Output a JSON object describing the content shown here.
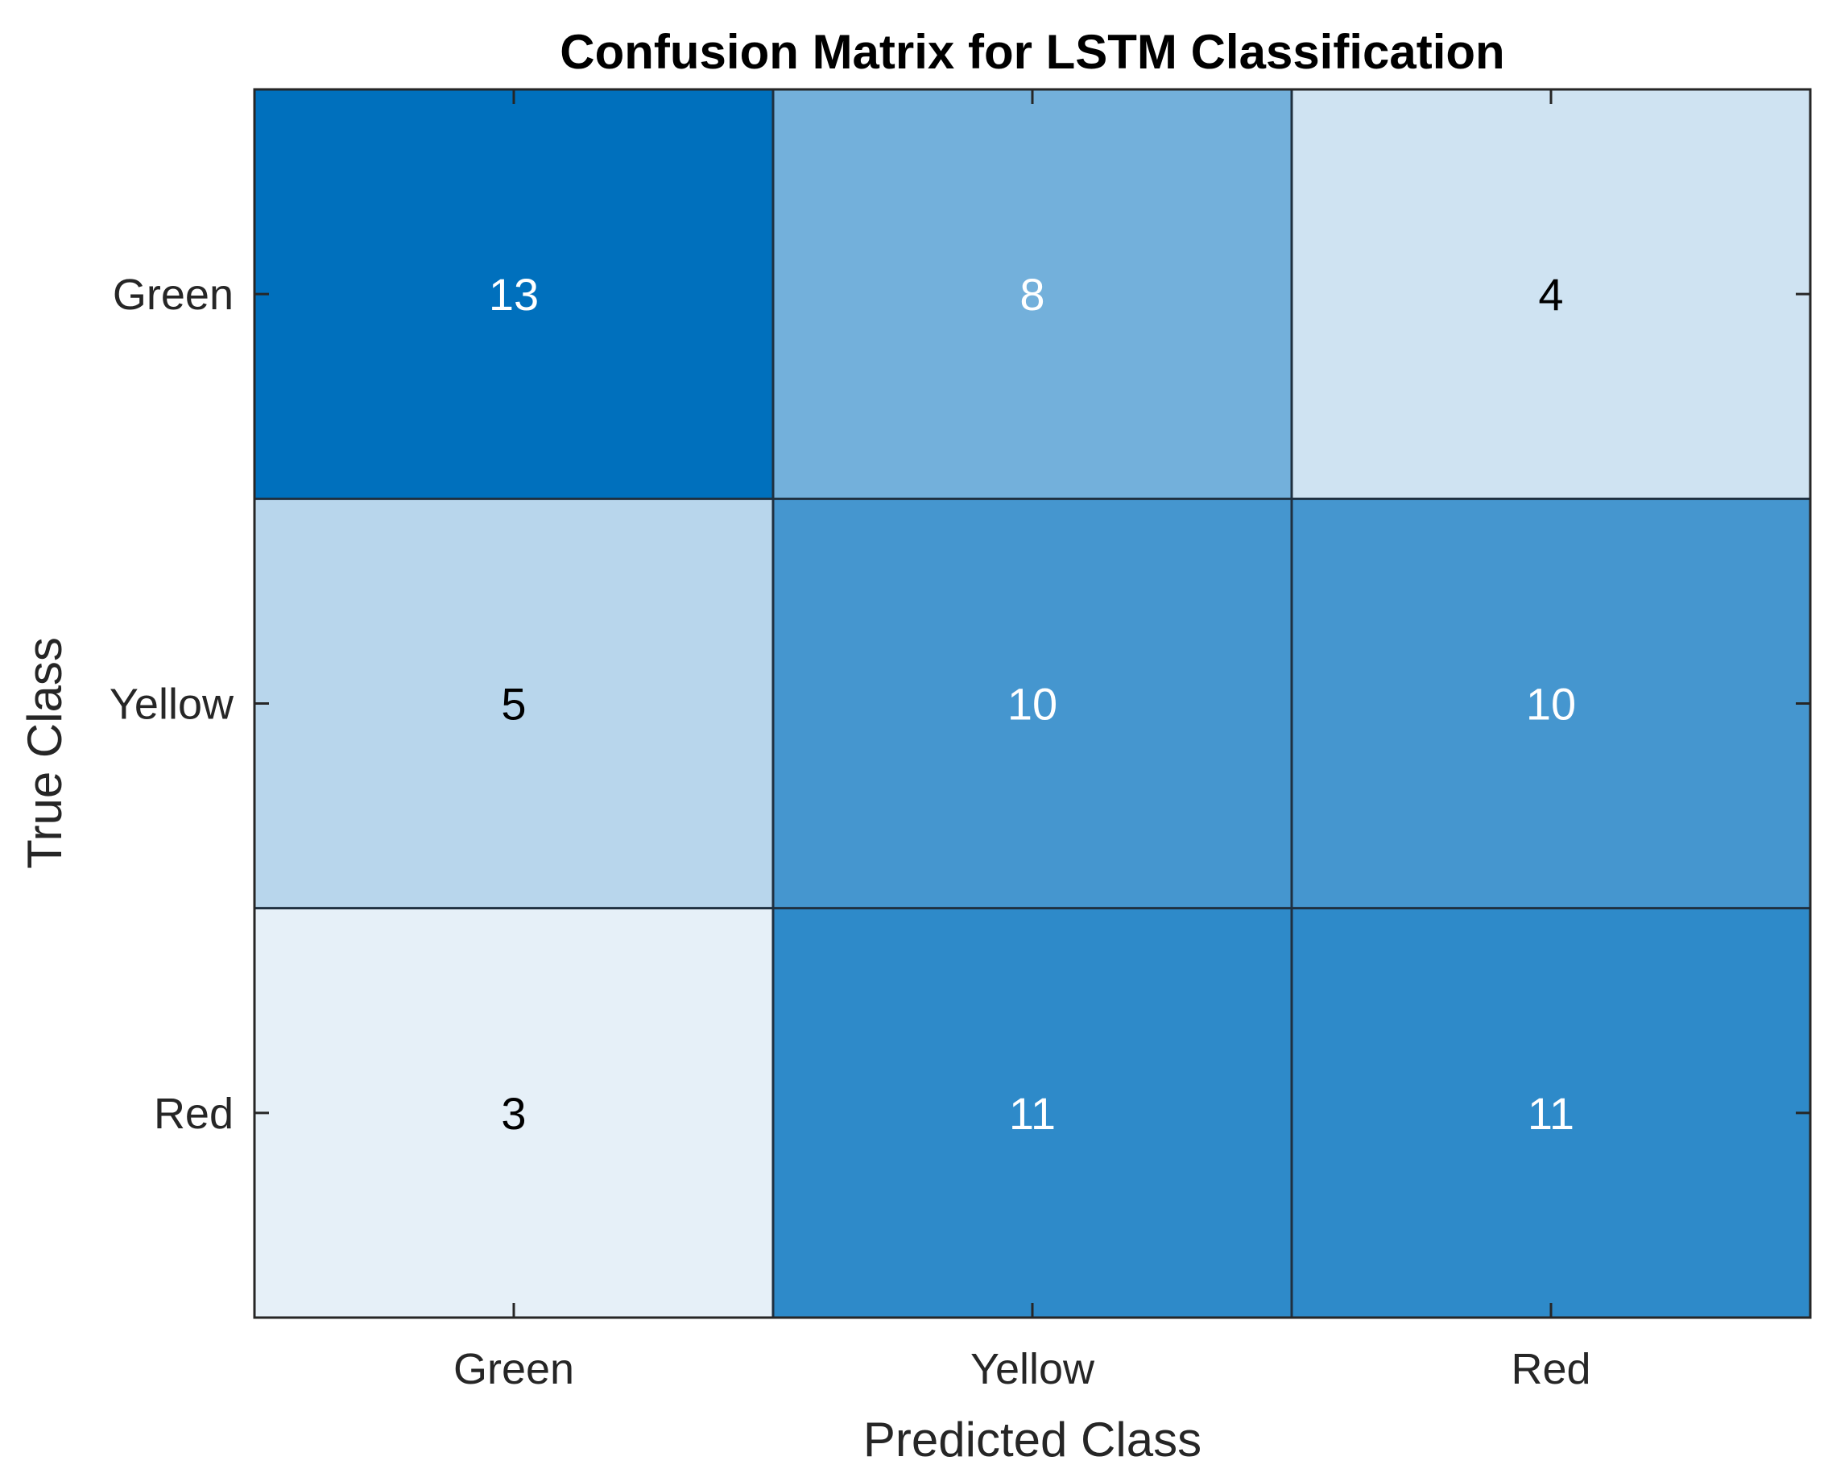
{
  "chart_data": {
    "type": "heatmap",
    "title": "Confusion Matrix for LSTM Classification",
    "xlabel": "Predicted Class",
    "ylabel": "True Class",
    "x_categories": [
      "Green",
      "Yellow",
      "Red"
    ],
    "y_categories": [
      "Green",
      "Yellow",
      "Red"
    ],
    "values": [
      [
        13,
        8,
        4
      ],
      [
        5,
        10,
        10
      ],
      [
        3,
        11,
        11
      ]
    ],
    "color_low": "#e6f0f8",
    "color_high": "#0070bd",
    "text_color_dark": "#000000",
    "text_color_light": "#ffffff",
    "grid": true
  }
}
